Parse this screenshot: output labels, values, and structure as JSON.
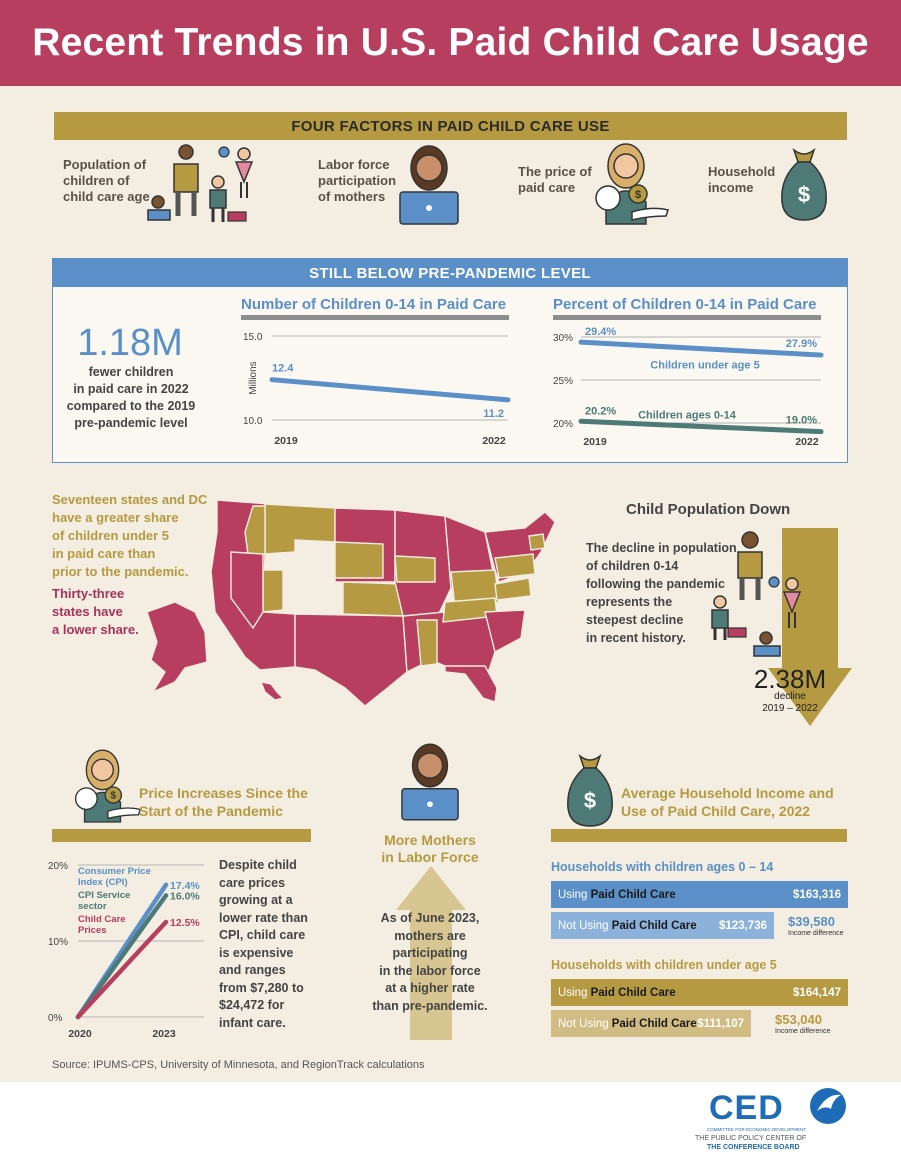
{
  "title": "Recent Trends in U.S. Paid Child Care Usage",
  "factors": {
    "banner": "FOUR FACTORS IN PAID CHILD CARE USE",
    "items": [
      {
        "label_lines": [
          "Population of",
          "children of",
          "child care age"
        ],
        "icon": "family-children-icon"
      },
      {
        "label_lines": [
          "Labor force",
          "participation",
          "of mothers"
        ],
        "icon": "mother-laptop-icon"
      },
      {
        "label_lines": [
          "The price of",
          "paid care"
        ],
        "icon": "mother-baby-coin-icon"
      },
      {
        "label_lines": [
          "Household",
          "income"
        ],
        "icon": "money-bag-icon"
      }
    ]
  },
  "pandemic": {
    "banner": "STILL BELOW PRE-PANDEMIC LEVEL",
    "big_number": "1.18M",
    "big_caption_lines": [
      "fewer children",
      "in paid care in 2022",
      "compared to the 2019",
      "pre-pandemic level"
    ]
  },
  "population": {
    "title": "Child Population Down",
    "text_lines": [
      "The decline in population",
      "of children 0-14",
      "following the pandemic",
      "represents the",
      "steepest decline",
      "in recent history."
    ],
    "big_number": "2.38M",
    "caption_lines": [
      "decline",
      "2019 – 2022"
    ]
  },
  "map": {
    "gold_text_lines": [
      "Seventeen states and DC",
      "have a greater share",
      "of children under 5",
      "in paid care than",
      "prior to the pandemic."
    ],
    "rose_text_lines": [
      "Thirty-three",
      "states have",
      "a lower share."
    ],
    "colors": {
      "greater": "#b59a42",
      "lower": "#b83e5f"
    }
  },
  "price": {
    "title_lines": [
      "Price Increases Since the",
      "Start of the Pandemic"
    ],
    "text_lines": [
      "Despite child",
      "care prices",
      "growing at a",
      "lower rate than",
      "CPI, child care",
      "is expensive",
      "and ranges",
      "from $7,280 to",
      "$24,472 for",
      "infant care."
    ]
  },
  "mothers": {
    "title_lines": [
      "More Mothers",
      "in Labor Force"
    ],
    "text_lines": [
      "As of June 2023,",
      "mothers are",
      "participating",
      "in the labor force",
      "at a higher rate",
      "than pre-pandemic."
    ]
  },
  "income": {
    "title_lines": [
      "Average Household Income and",
      "Use of Paid Child Care, 2022"
    ],
    "group1": {
      "heading": "Households with children ages 0 – 14",
      "using_prefix": "Using ",
      "using_bold": "Paid Child Care",
      "using_value": "$163,316",
      "not_prefix": "Not Using ",
      "not_bold": "Paid Child Care",
      "not_value": "$123,736",
      "difference": "$39,580",
      "difference_label": "Income difference"
    },
    "group2": {
      "heading": "Households with children under age 5",
      "using_prefix": "Using ",
      "using_bold": "Paid Child Care",
      "using_value": "$164,147",
      "not_prefix": "Not Using ",
      "not_bold": "Paid Child Care",
      "not_value": "$111,107",
      "difference": "$53,040",
      "difference_label": "Income difference"
    }
  },
  "source": "Source: IPUMS-CPS, University of Minnesota, and RegionTrack calculations",
  "logo": {
    "name": "CED",
    "subline": "COMMITTEE FOR ECONOMIC DEVELOPMENT",
    "line1": "THE PUBLIC POLICY CENTER OF",
    "line2": "THE CONFERENCE BOARD"
  },
  "chart_data": [
    {
      "type": "line",
      "title": "Number of Children 0-14 in Paid Care",
      "ylabel": "Millions",
      "x": [
        "2019",
        "2022"
      ],
      "y_ticks": [
        "15.0",
        "10.0"
      ],
      "ylim": [
        10,
        15
      ],
      "series": [
        {
          "values": [
            12.4,
            11.2
          ],
          "labels": [
            "12.4",
            "11.2"
          ],
          "color": "#5a8fc7"
        }
      ]
    },
    {
      "type": "line",
      "title": "Percent of Children 0-14 in Paid Care",
      "x": [
        "2019",
        "2022"
      ],
      "y_ticks": [
        "30%",
        "25%",
        "20%"
      ],
      "ylim": [
        20,
        30
      ],
      "series": [
        {
          "name": "Children under age 5",
          "values": [
            29.4,
            27.9
          ],
          "labels": [
            "29.4%",
            "27.9%"
          ],
          "color": "#5a8fc7"
        },
        {
          "name": "Children ages 0-14",
          "values": [
            20.2,
            19.0
          ],
          "labels": [
            "20.2%",
            "19.0%"
          ],
          "color": "#4d7a76"
        }
      ]
    },
    {
      "type": "line",
      "x": [
        "2020",
        "2023"
      ],
      "y_ticks": [
        "20%",
        "10%",
        "0%"
      ],
      "ylim": [
        0,
        20
      ],
      "series": [
        {
          "name": "Consumer Price Index (CPI)",
          "name_lines": [
            "Consumer Price",
            "Index (CPI)"
          ],
          "values": [
            0,
            17.4
          ],
          "label": "17.4%",
          "color": "#5a8fc7"
        },
        {
          "name": "CPI Service sector",
          "name_lines": [
            "CPI Service",
            "sector"
          ],
          "values": [
            0,
            16.0
          ],
          "label": "16.0%",
          "color": "#4d7a76"
        },
        {
          "name": "Child Care Prices",
          "name_lines": [
            "Child Care",
            "Prices"
          ],
          "values": [
            0,
            12.5
          ],
          "label": "12.5%",
          "color": "#b83e5f"
        }
      ]
    }
  ]
}
